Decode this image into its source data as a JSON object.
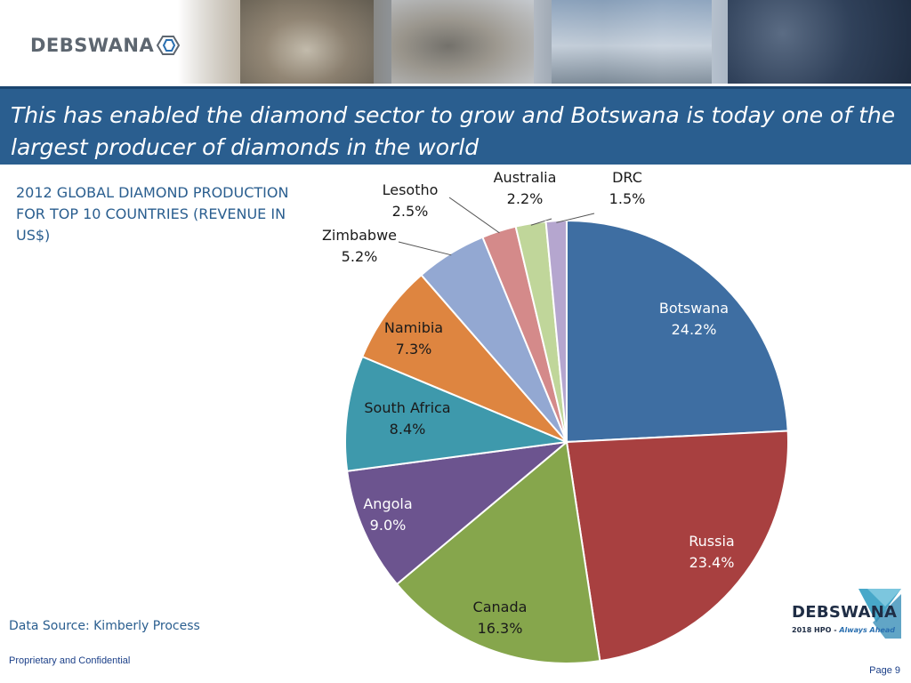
{
  "header": {
    "logo_text": "DEBSWANA",
    "title": "This has enabled the diamond sector to grow and Botswana is today one of the largest producer of diamonds in the world"
  },
  "caption": "2012 GLOBAL DIAMOND PRODUCTION FOR TOP 10 COUNTRIES (REVENUE IN US$)",
  "source": "Data Source: Kimberly Process",
  "footer": {
    "confidential": "Proprietary and Confidential",
    "page": "Page 9"
  },
  "bottom_logo": {
    "name": "DEBSWANA",
    "tagline_prefix": "2018 HPO - ",
    "tagline_emphasis": "Always Ahead"
  },
  "colors": {
    "title_bar": "#2a5e8f",
    "text_blue": "#2a5e8f"
  },
  "chart_data": {
    "type": "pie",
    "title": "2012 GLOBAL DIAMOND PRODUCTION FOR TOP 10 COUNTRIES (REVENUE IN US$)",
    "slices": [
      {
        "label": "Botswana",
        "value": 24.2,
        "display": "24.2%",
        "color": "#3e6ea2",
        "text_color": "#ffffff"
      },
      {
        "label": "Russia",
        "value": 23.4,
        "display": "23.4%",
        "color": "#a84040",
        "text_color": "#ffffff"
      },
      {
        "label": "Canada",
        "value": 16.3,
        "display": "16.3%",
        "color": "#86a64c",
        "text_color": "#1a1a1a"
      },
      {
        "label": "Angola",
        "value": 9.0,
        "display": "9.0%",
        "color": "#6c548f",
        "text_color": "#ffffff"
      },
      {
        "label": "South Africa",
        "value": 8.4,
        "display": "8.4%",
        "color": "#3e99ac",
        "text_color": "#1a1a1a"
      },
      {
        "label": "Namibia",
        "value": 7.3,
        "display": "7.3%",
        "color": "#de8540",
        "text_color": "#1a1a1a"
      },
      {
        "label": "Zimbabwe",
        "value": 5.2,
        "display": "5.2%",
        "color": "#93a8d2",
        "text_color": "#1a1a1a"
      },
      {
        "label": "Lesotho",
        "value": 2.5,
        "display": "2.5%",
        "color": "#d48a8a",
        "text_color": "#1a1a1a"
      },
      {
        "label": "Australia",
        "value": 2.2,
        "display": "2.2%",
        "color": "#c0d69a",
        "text_color": "#1a1a1a"
      },
      {
        "label": "DRC",
        "value": 1.5,
        "display": "1.5%",
        "color": "#b5a6cf",
        "text_color": "#1a1a1a"
      }
    ],
    "start_angle": "12 o'clock",
    "direction": "clockwise",
    "legend": "none (labels on slices, leader lines for small slices)"
  }
}
